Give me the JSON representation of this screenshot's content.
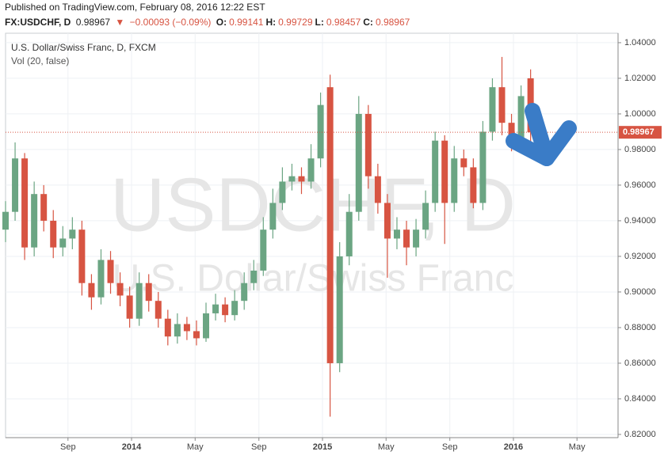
{
  "header": {
    "published": "Published on TradingView.com, February 08, 2016 12:22 EST",
    "symbol": "FX:USDCHF, D",
    "last": "0.98967",
    "arrow": "▼",
    "change": "−0.00093 (−0.09%)",
    "ohlc": [
      {
        "key": "O:",
        "value": "0.99141"
      },
      {
        "key": "H:",
        "value": "0.99729"
      },
      {
        "key": "L:",
        "value": "0.98457"
      },
      {
        "key": "C:",
        "value": "0.98967"
      }
    ]
  },
  "chart_data": {
    "type": "candlestick",
    "legend_title": "U.S. Dollar/Swiss Franc, D, FXCM",
    "indicator": "Vol (20, false)",
    "watermark": "USDCHF, D",
    "watermark_subtitle": "U.S. Dollar/Swiss Franc",
    "x": [
      2013.34,
      2013.39,
      2013.44,
      2013.49,
      2013.54,
      2013.59,
      2013.64,
      2013.69,
      2013.74,
      2013.79,
      2013.84,
      2013.89,
      2013.94,
      2013.99,
      2014.04,
      2014.09,
      2014.14,
      2014.19,
      2014.24,
      2014.29,
      2014.34,
      2014.39,
      2014.44,
      2014.49,
      2014.54,
      2014.59,
      2014.64,
      2014.69,
      2014.74,
      2014.79,
      2014.84,
      2014.89,
      2014.94,
      2014.99,
      2015.04,
      2015.09,
      2015.14,
      2015.19,
      2015.24,
      2015.29,
      2015.34,
      2015.39,
      2015.44,
      2015.49,
      2015.54,
      2015.59,
      2015.64,
      2015.69,
      2015.74,
      2015.79,
      2015.84,
      2015.89,
      2015.94,
      2015.99,
      2016.04,
      2016.09
    ],
    "open": [
      0.935,
      0.945,
      0.975,
      0.925,
      0.955,
      0.94,
      0.925,
      0.93,
      0.935,
      0.905,
      0.897,
      0.918,
      0.905,
      0.898,
      0.885,
      0.905,
      0.895,
      0.885,
      0.875,
      0.882,
      0.878,
      0.874,
      0.888,
      0.893,
      0.887,
      0.895,
      0.905,
      0.912,
      0.935,
      0.95,
      0.962,
      0.965,
      0.962,
      0.975,
      1.015,
      0.86,
      0.92,
      0.945,
      1.0,
      0.965,
      0.95,
      0.93,
      0.935,
      0.925,
      0.935,
      0.95,
      0.985,
      0.95,
      0.975,
      0.97,
      0.95,
      0.99,
      1.015,
      0.995,
      0.985,
      1.02
    ],
    "high": [
      0.951,
      0.984,
      0.978,
      0.962,
      0.96,
      0.946,
      0.937,
      0.942,
      0.94,
      0.91,
      0.924,
      0.923,
      0.911,
      0.903,
      0.911,
      0.91,
      0.9,
      0.89,
      0.888,
      0.886,
      0.884,
      0.894,
      0.899,
      0.897,
      0.901,
      0.911,
      0.918,
      0.942,
      0.958,
      0.97,
      0.972,
      0.97,
      0.983,
      1.012,
      1.022,
      0.928,
      0.955,
      1.01,
      1.005,
      0.972,
      0.955,
      0.942,
      0.94,
      0.941,
      0.957,
      0.99,
      0.988,
      0.982,
      0.98,
      0.975,
      0.996,
      1.02,
      1.032,
      1.0,
      1.016,
      1.025
    ],
    "low": [
      0.928,
      0.94,
      0.918,
      0.92,
      0.934,
      0.919,
      0.92,
      0.924,
      0.898,
      0.89,
      0.893,
      0.899,
      0.892,
      0.88,
      0.881,
      0.889,
      0.88,
      0.87,
      0.871,
      0.873,
      0.87,
      0.872,
      0.884,
      0.883,
      0.884,
      0.89,
      0.901,
      0.909,
      0.93,
      0.946,
      0.957,
      0.955,
      0.958,
      0.97,
      0.83,
      0.855,
      0.915,
      0.94,
      0.958,
      0.944,
      0.908,
      0.924,
      0.915,
      0.92,
      0.93,
      0.945,
      0.927,
      0.945,
      0.965,
      0.947,
      0.946,
      0.985,
      0.988,
      0.979,
      0.98,
      0.984
    ],
    "close": [
      0.945,
      0.975,
      0.925,
      0.955,
      0.94,
      0.925,
      0.93,
      0.935,
      0.905,
      0.897,
      0.918,
      0.905,
      0.898,
      0.885,
      0.905,
      0.895,
      0.885,
      0.875,
      0.882,
      0.878,
      0.874,
      0.888,
      0.893,
      0.887,
      0.895,
      0.905,
      0.912,
      0.935,
      0.95,
      0.962,
      0.965,
      0.962,
      0.975,
      1.005,
      0.86,
      0.92,
      0.945,
      1.0,
      0.965,
      0.95,
      0.93,
      0.935,
      0.925,
      0.935,
      0.95,
      0.985,
      0.95,
      0.975,
      0.97,
      0.95,
      0.99,
      1.015,
      0.995,
      0.985,
      1.01,
      0.98967
    ],
    "up_color": "#6ba583",
    "down_color": "#d75442",
    "last_price": 0.98967,
    "last_price_color": "#d75442",
    "xlim": [
      2013.34,
      2016.548
    ],
    "ylim": [
      0.8182,
      1.0453
    ],
    "xticks": [
      {
        "value": 2013.667,
        "label": "Sep"
      },
      2014,
      {
        "value": 2014.333,
        "label": "May"
      },
      {
        "value": 2014.667,
        "label": "Sep"
      },
      2015,
      {
        "value": 2015.333,
        "label": "May"
      },
      {
        "value": 2015.667,
        "label": "Sep"
      },
      2016,
      {
        "value": 2016.333,
        "label": "May"
      }
    ],
    "yticks": [
      {
        "value": 0.82,
        "label": "0.82000"
      },
      {
        "value": 0.84,
        "label": "0.84000"
      },
      {
        "value": 0.86,
        "label": "0.86000"
      },
      {
        "value": 0.88,
        "label": "0.88000"
      },
      {
        "value": 0.9,
        "label": "0.90000"
      },
      {
        "value": 0.92,
        "label": "0.92000"
      },
      {
        "value": 0.94,
        "label": "0.94000"
      },
      {
        "value": 0.96,
        "label": "0.96000"
      },
      {
        "value": 0.98,
        "label": "0.98000"
      },
      {
        "value": 1.0,
        "label": "1.00000"
      },
      {
        "value": 1.02,
        "label": "1.02000"
      },
      {
        "value": 1.04,
        "label": "1.04000"
      }
    ],
    "grid": true
  }
}
